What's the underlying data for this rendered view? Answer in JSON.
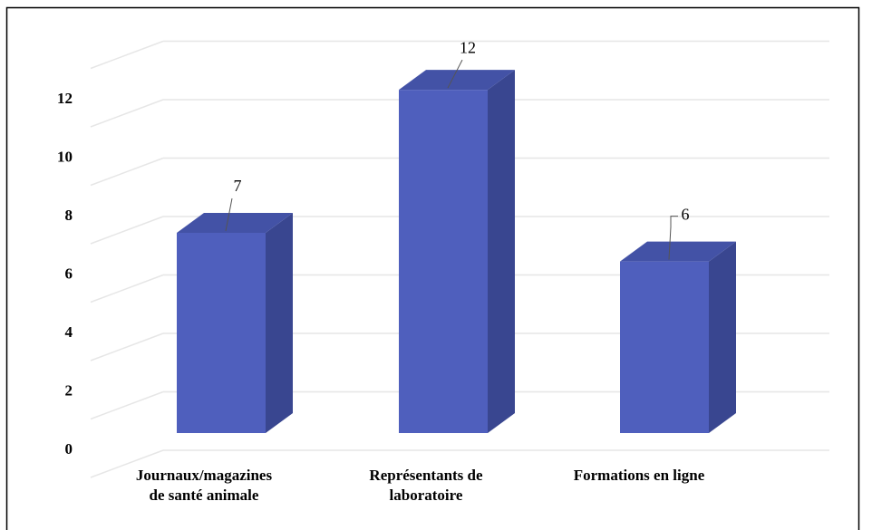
{
  "chart_data": {
    "type": "bar",
    "categories": [
      "Journaux/magazines\nde santé animale",
      "Représentants de\nlaboratoire",
      "Formations en ligne"
    ],
    "values": [
      7,
      12,
      6
    ],
    "color": "#4f5fbd",
    "ylim": [
      0,
      14
    ],
    "yticks": [
      0,
      2,
      4,
      6,
      8,
      10,
      12
    ],
    "grid": true
  }
}
